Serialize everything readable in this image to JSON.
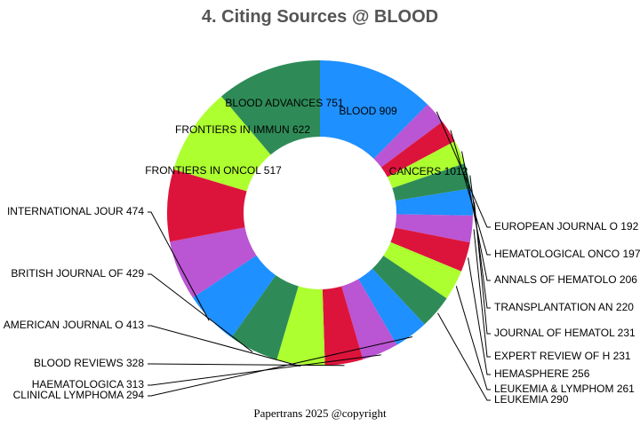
{
  "chart_data": {
    "type": "pie",
    "variant": "donut",
    "title": "4. Citing Sources @ BLOOD",
    "footer": "Papertrans 2025 @copyright",
    "colors_cycle": [
      "#1e90ff",
      "#ba55d3",
      "#dc143c",
      "#adff2f",
      "#2e8b57"
    ],
    "slices": [
      {
        "label": "CANCERS 1012",
        "value": 1012,
        "color": "#1e90ff"
      },
      {
        "label": "EUROPEAN JOURNAL O 192",
        "value": 192,
        "color": "#ba55d3"
      },
      {
        "label": "HEMATOLOGICAL ONCO 197",
        "value": 197,
        "color": "#dc143c"
      },
      {
        "label": "ANNALS OF HEMATOLO 206",
        "value": 206,
        "color": "#adff2f"
      },
      {
        "label": "TRANSPLANTATION AN 220",
        "value": 220,
        "color": "#2e8b57"
      },
      {
        "label": "JOURNAL OF HEMATOL 231",
        "value": 231,
        "color": "#1e90ff"
      },
      {
        "label": "EXPERT REVIEW OF H 231",
        "value": 231,
        "color": "#ba55d3"
      },
      {
        "label": "HEMASPHERE 256",
        "value": 256,
        "color": "#dc143c"
      },
      {
        "label": "LEUKEMIA & LYMPHOM 261",
        "value": 261,
        "color": "#adff2f"
      },
      {
        "label": "LEUKEMIA 290",
        "value": 290,
        "color": "#2e8b57"
      },
      {
        "label": "CLINICAL LYMPHOMA  294",
        "value": 294,
        "color": "#1e90ff"
      },
      {
        "label": "HAEMATOLOGICA 313",
        "value": 313,
        "color": "#ba55d3"
      },
      {
        "label": "BLOOD REVIEWS 328",
        "value": 328,
        "color": "#dc143c"
      },
      {
        "label": "AMERICAN JOURNAL O 413",
        "value": 413,
        "color": "#adff2f"
      },
      {
        "label": "BRITISH JOURNAL OF 429",
        "value": 429,
        "color": "#2e8b57"
      },
      {
        "label": "INTERNATIONAL JOUR 474",
        "value": 474,
        "color": "#1e90ff"
      },
      {
        "label": "FRONTIERS IN ONCOL 517",
        "value": 517,
        "color": "#ba55d3"
      },
      {
        "label": "FRONTIERS IN IMMUN 622",
        "value": 622,
        "color": "#dc143c"
      },
      {
        "label": "BLOOD ADVANCES 751",
        "value": 751,
        "color": "#adff2f"
      },
      {
        "label": "BLOOD 909",
        "value": 909,
        "color": "#2e8b57"
      }
    ]
  }
}
